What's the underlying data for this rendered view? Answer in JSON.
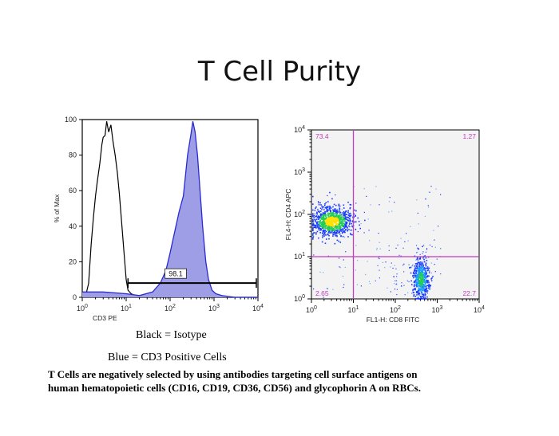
{
  "slide": {
    "title": "T Cell Purity",
    "caption_black": "Black = Isotype",
    "caption_blue": "Blue = CD3 Positive Cells",
    "footnote_line1": "T Cells are negatively selected by using antibodies targeting cell surface antigens on",
    "footnote_line2": "human hematopoietic cells (CD16, CD19, CD36, CD56) and glycophorin A on RBCs."
  },
  "chart_data": [
    {
      "type": "line",
      "subtype": "histogram-overlay",
      "xlabel": "CD3 PE",
      "ylabel": "% of Max",
      "x_scale": "log",
      "xlim": [
        1,
        10000
      ],
      "ylim": [
        0,
        100
      ],
      "y_ticks": [
        0,
        20,
        40,
        60,
        80,
        100
      ],
      "x_ticks": [
        {
          "base": "10",
          "exp": "0"
        },
        {
          "base": "10",
          "exp": "1"
        },
        {
          "base": "10",
          "exp": "2"
        },
        {
          "base": "10",
          "exp": "3"
        },
        {
          "base": "10",
          "exp": "4"
        }
      ],
      "gate": {
        "x_start": 11,
        "x_end": 10000,
        "y": 8,
        "label": "98.1"
      },
      "series": [
        {
          "color": "#000000",
          "fill": null,
          "points": [
            [
              1.2,
              1
            ],
            [
              1.4,
              8
            ],
            [
              1.6,
              30
            ],
            [
              1.8,
              45
            ],
            [
              2.0,
              57
            ],
            [
              2.2,
              65
            ],
            [
              2.5,
              75
            ],
            [
              2.8,
              86
            ],
            [
              3.0,
              90
            ],
            [
              3.3,
              91
            ],
            [
              3.6,
              99
            ],
            [
              4.0,
              93
            ],
            [
              4.5,
              97
            ],
            [
              5.0,
              88
            ],
            [
              5.6,
              80
            ],
            [
              6.3,
              70
            ],
            [
              7.0,
              58
            ],
            [
              8.0,
              40
            ],
            [
              9.0,
              24
            ],
            [
              10,
              10
            ],
            [
              11,
              4
            ],
            [
              13,
              2
            ],
            [
              16,
              1
            ],
            [
              20,
              0
            ]
          ]
        },
        {
          "color": "#2a2ad0",
          "fill": "#9e9ee6",
          "points": [
            [
              1,
              3
            ],
            [
              3,
              3
            ],
            [
              10,
              2
            ],
            [
              20,
              1
            ],
            [
              40,
              3
            ],
            [
              60,
              8
            ],
            [
              80,
              15
            ],
            [
              100,
              25
            ],
            [
              130,
              38
            ],
            [
              160,
              48
            ],
            [
              200,
              57
            ],
            [
              250,
              80
            ],
            [
              300,
              92
            ],
            [
              330,
              99
            ],
            [
              370,
              93
            ],
            [
              420,
              80
            ],
            [
              480,
              60
            ],
            [
              550,
              40
            ],
            [
              650,
              20
            ],
            [
              750,
              10
            ],
            [
              900,
              4
            ],
            [
              1100,
              2
            ],
            [
              1500,
              1
            ],
            [
              3000,
              0
            ],
            [
              10000,
              0
            ]
          ]
        }
      ]
    },
    {
      "type": "scatter",
      "subtype": "flow-cytometry-density",
      "xlabel": "FL1-H: CD8 FITC",
      "ylabel": "FL4-H: CD4 APC",
      "x_scale": "log",
      "y_scale": "log",
      "xlim": [
        1,
        10000
      ],
      "ylim": [
        1,
        10000
      ],
      "quadrant_gate": {
        "x": 10,
        "y": 10
      },
      "quadrant_percent": {
        "upper_left": "73.4",
        "upper_right": "1.27",
        "lower_left": "2.65",
        "lower_right": "22.7"
      },
      "populations": [
        {
          "name": "CD4+ cluster",
          "x_center": 3,
          "y_center": 70
        },
        {
          "name": "CD8+ cluster",
          "x_center": 400,
          "y_center": 3
        }
      ],
      "x_ticks": [
        {
          "base": "10",
          "exp": "0"
        },
        {
          "base": "10",
          "exp": "1"
        },
        {
          "base": "10",
          "exp": "2"
        },
        {
          "base": "10",
          "exp": "3"
        },
        {
          "base": "10",
          "exp": "4"
        }
      ],
      "y_ticks": [
        {
          "base": "10",
          "exp": "0"
        },
        {
          "base": "10",
          "exp": "1"
        },
        {
          "base": "10",
          "exp": "2"
        },
        {
          "base": "10",
          "exp": "3"
        },
        {
          "base": "10",
          "exp": "4"
        }
      ],
      "colors": {
        "gate_line": "#c03cc0",
        "plot_bg": "#f3f3f3"
      }
    }
  ]
}
